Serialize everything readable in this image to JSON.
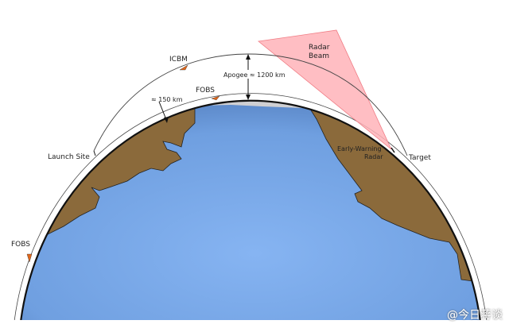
{
  "labels": {
    "icbm": "ICBM",
    "fobs_top": "FOBS",
    "fobs_left": "FOBS",
    "altitude_fobs": "≈ 150 km",
    "apogee": "Apogee ≈ 1200 km",
    "radar_beam_line1": "Radar",
    "radar_beam_line2": "Beam",
    "early_warning_line1": "Early-Warning",
    "early_warning_line2": "Radar",
    "launch_site": "Launch Site",
    "target": "Target"
  },
  "watermark": "@今日蒋谈",
  "colors": {
    "ocean": "#6f9fe0",
    "land": "#8b6a3b",
    "ice": "#cfcfd2",
    "radar_beam": "#ffb3b8",
    "trajectory_arrow": "#e0661a"
  }
}
